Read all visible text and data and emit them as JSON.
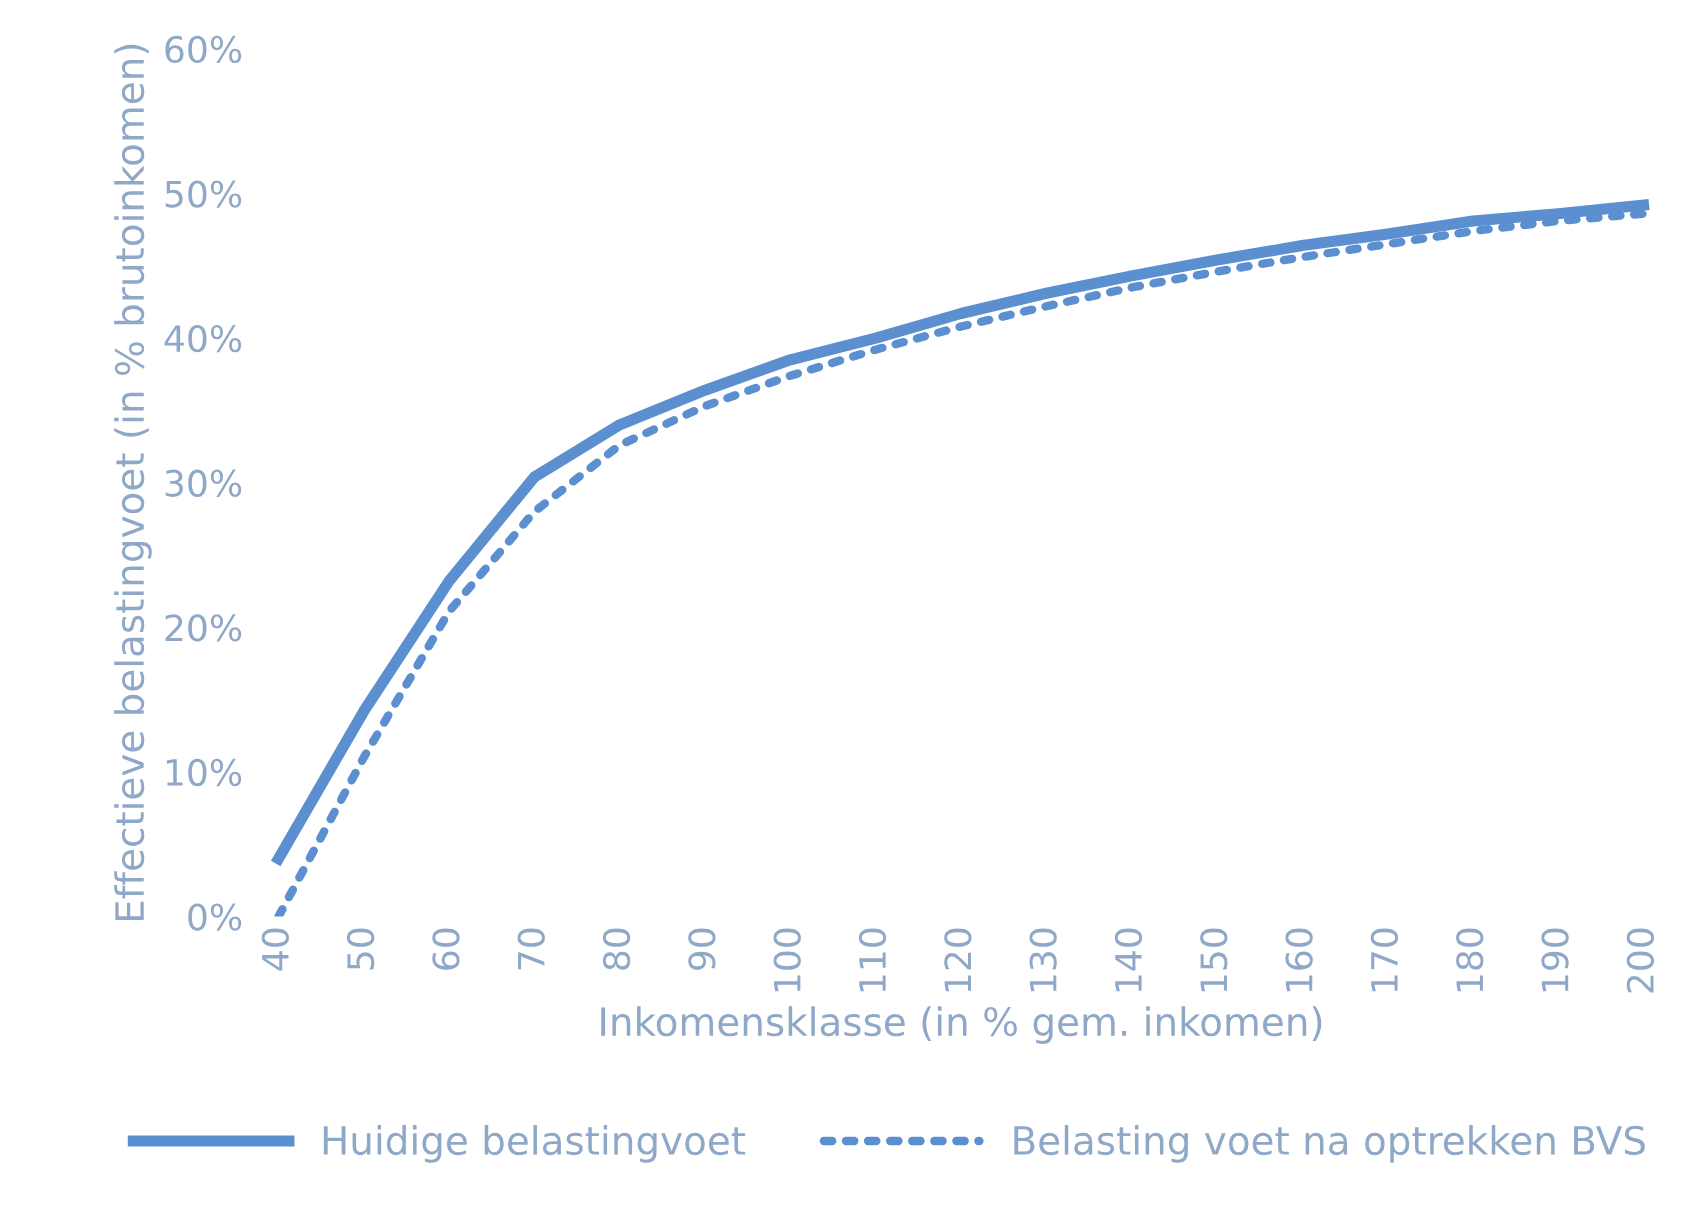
{
  "chart_data": {
    "type": "line",
    "xlabel": "Inkomensklasse (in % gem. inkomen)",
    "ylabel": "Effectieve belastingvoet (in % brutoinkomen)",
    "categories": [
      "40",
      "50",
      "60",
      "70",
      "80",
      "90",
      "100",
      "110",
      "120",
      "130",
      "140",
      "150",
      "160",
      "170",
      "180",
      "190",
      "200"
    ],
    "ylim": [
      0,
      60
    ],
    "yticks": [
      {
        "value": 0,
        "label": "0%"
      },
      {
        "value": 10,
        "label": "10%"
      },
      {
        "value": 20,
        "label": "20%"
      },
      {
        "value": 30,
        "label": "30%"
      },
      {
        "value": 40,
        "label": "40%"
      },
      {
        "value": 50,
        "label": "50%"
      },
      {
        "value": 60,
        "label": "60%"
      }
    ],
    "grid": false,
    "legend": "bottom",
    "marker": "none",
    "series": [
      {
        "name": "Huidige belastingvoet",
        "color": "#5b8fd0",
        "line_style": "solid",
        "values": [
          4.0,
          14.2,
          23.2,
          30.4,
          34.0,
          36.4,
          38.5,
          40.0,
          41.7,
          43.1,
          44.3,
          45.4,
          46.4,
          47.2,
          48.1,
          48.6,
          49.2
        ]
      },
      {
        "name": "Belasting voet na optrekken BVS",
        "color": "#5b8fd0",
        "line_style": "dotted",
        "values": [
          0,
          11.0,
          21.1,
          28.0,
          32.6,
          35.3,
          37.4,
          39.2,
          40.8,
          42.2,
          43.5,
          44.6,
          45.6,
          46.5,
          47.4,
          48.1,
          48.6
        ]
      }
    ]
  }
}
